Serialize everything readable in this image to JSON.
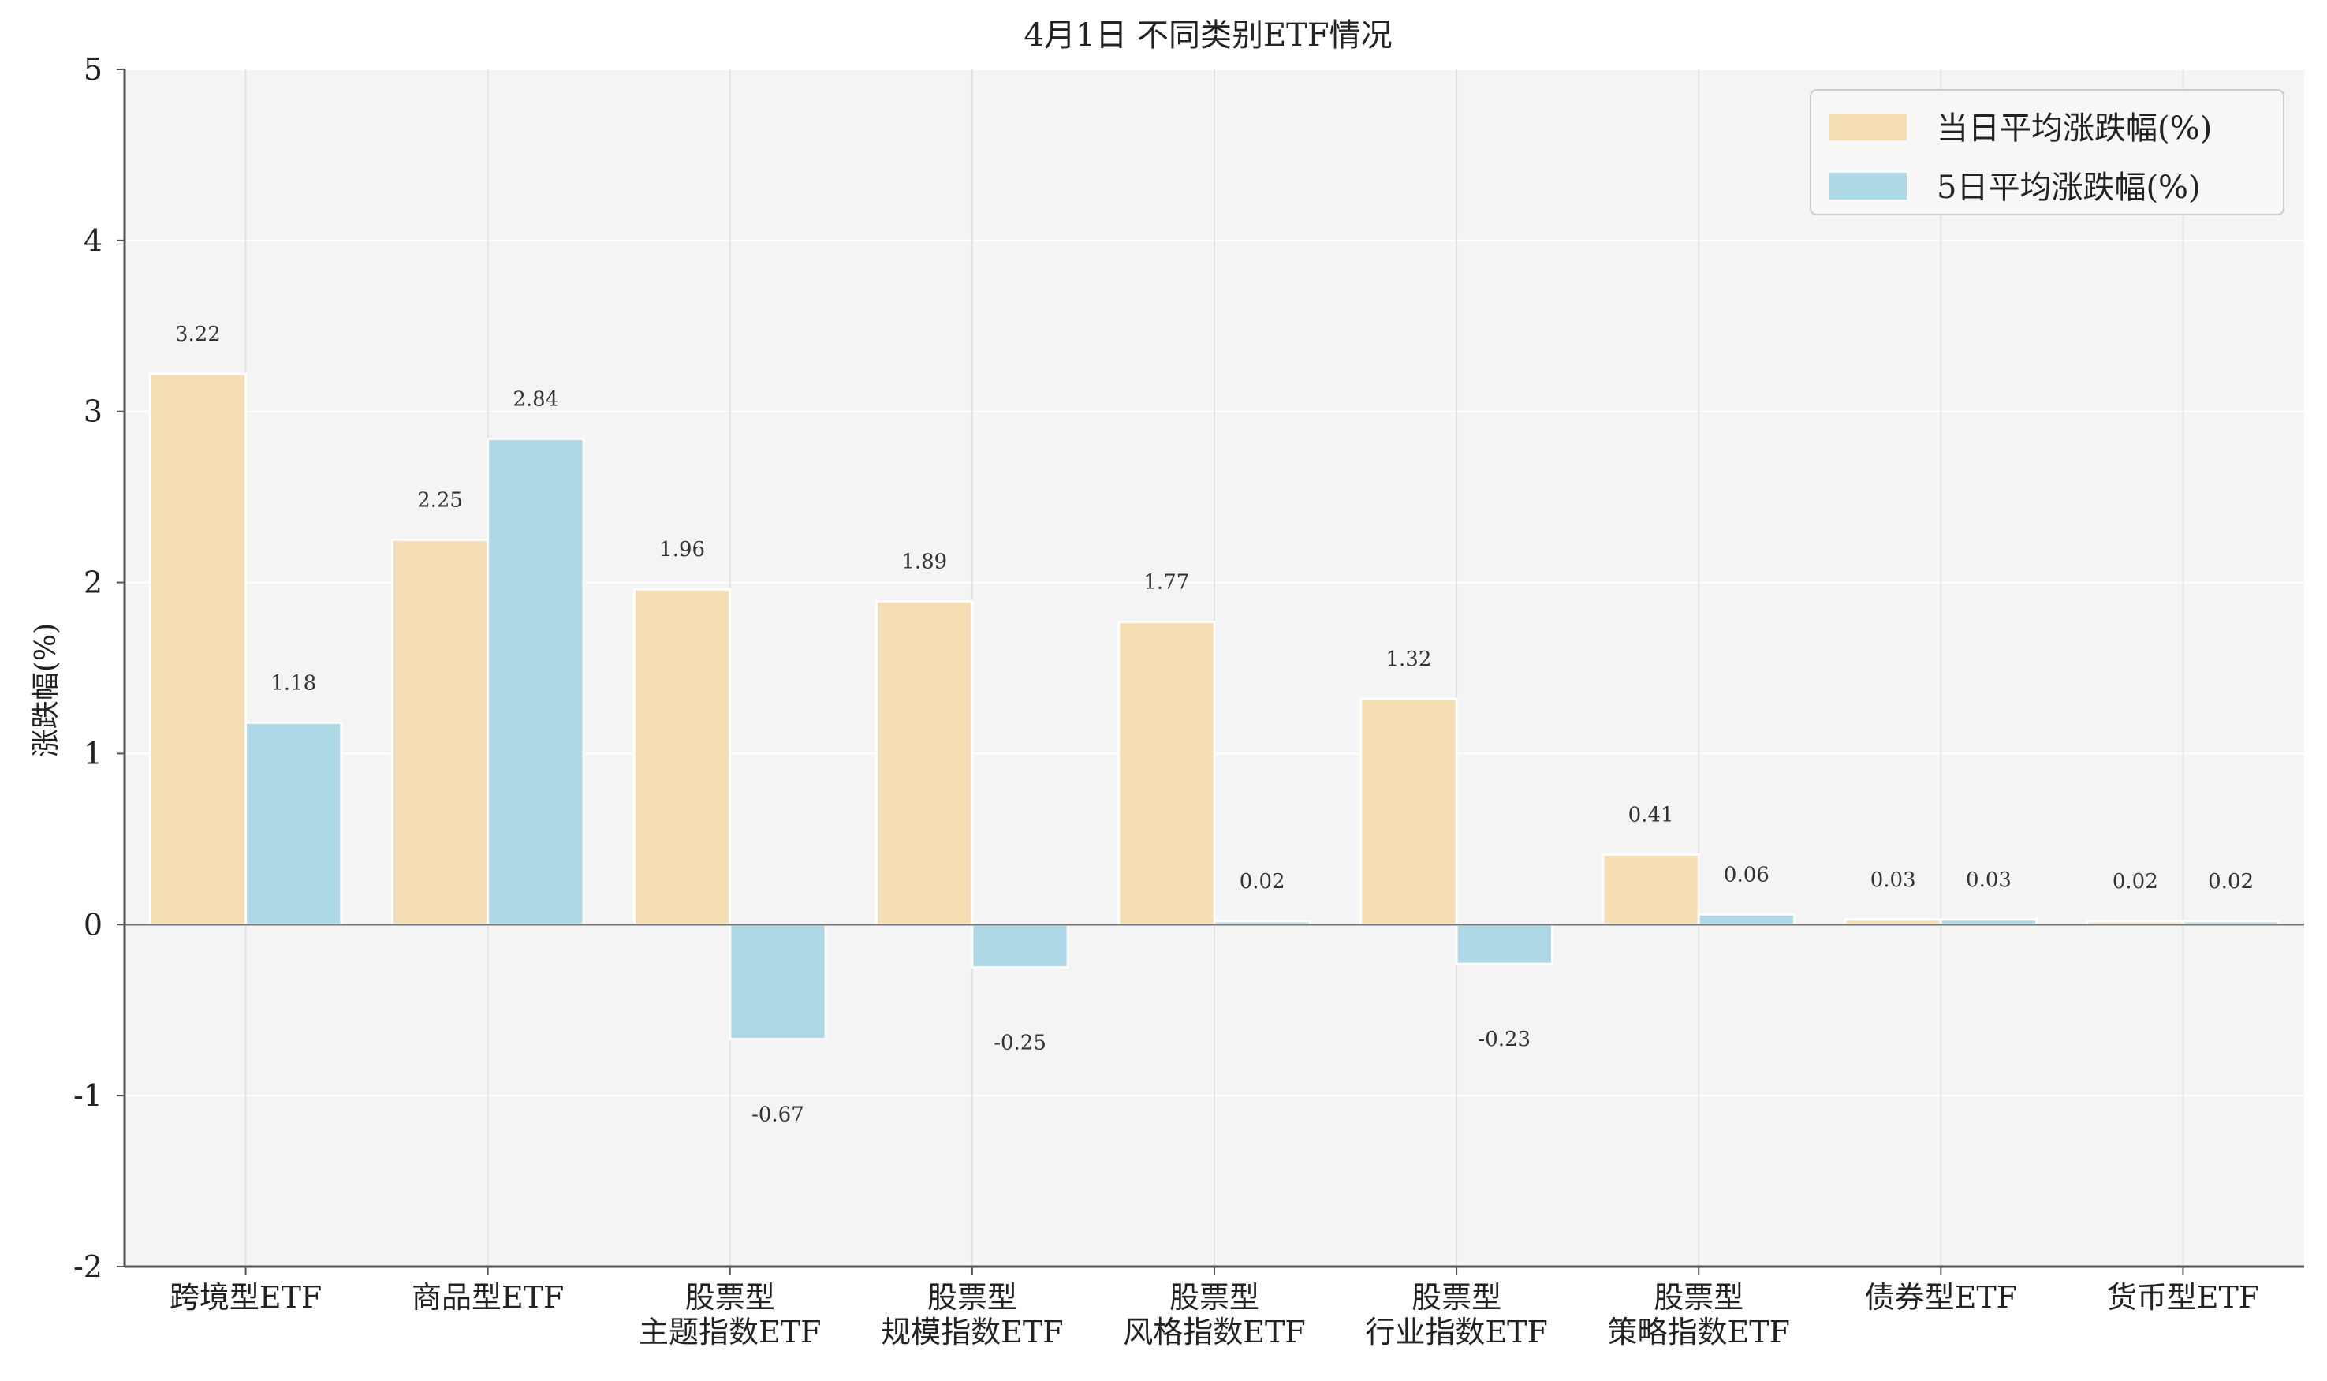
{
  "chart_data": {
    "type": "bar",
    "title": "4月1日 不同类别ETF情况",
    "xlabel": "",
    "ylabel": "涨跌幅(%)",
    "ylim": [
      -2,
      5
    ],
    "yticks": [
      "-2",
      "-1",
      "0",
      "1",
      "2",
      "3",
      "4",
      "5"
    ],
    "grid": true,
    "legend_position": "top-right",
    "categories": [
      [
        "跨境型ETF"
      ],
      [
        "商品型ETF"
      ],
      [
        "股票型",
        "主题指数ETF"
      ],
      [
        "股票型",
        "规模指数ETF"
      ],
      [
        "股票型",
        "风格指数ETF"
      ],
      [
        "股票型",
        "行业指数ETF"
      ],
      [
        "股票型",
        "策略指数ETF"
      ],
      [
        "债券型ETF"
      ],
      [
        "货币型ETF"
      ]
    ],
    "series": [
      {
        "name": "当日平均涨跌幅(%)",
        "color": "#f5deb3",
        "values": [
          3.22,
          2.25,
          1.96,
          1.89,
          1.77,
          1.32,
          0.41,
          0.03,
          0.02
        ],
        "labels": [
          "3.22",
          "2.25",
          "1.96",
          "1.89",
          "1.77",
          "1.32",
          "0.41",
          "0.03",
          "0.02"
        ]
      },
      {
        "name": "5日平均涨跌幅(%)",
        "color": "#add8e6",
        "values": [
          1.18,
          2.84,
          -0.67,
          -0.25,
          0.02,
          -0.23,
          0.06,
          0.03,
          0.02
        ],
        "labels": [
          "1.18",
          "2.84",
          "-0.67",
          "-0.25",
          "0.02",
          "-0.23",
          "0.06",
          "0.03",
          "0.02"
        ]
      }
    ],
    "colors": {
      "plot_background": "#f4f4f4",
      "grid": "#e2e2e2",
      "zero_line": "#777777",
      "axis": "#555555"
    }
  }
}
